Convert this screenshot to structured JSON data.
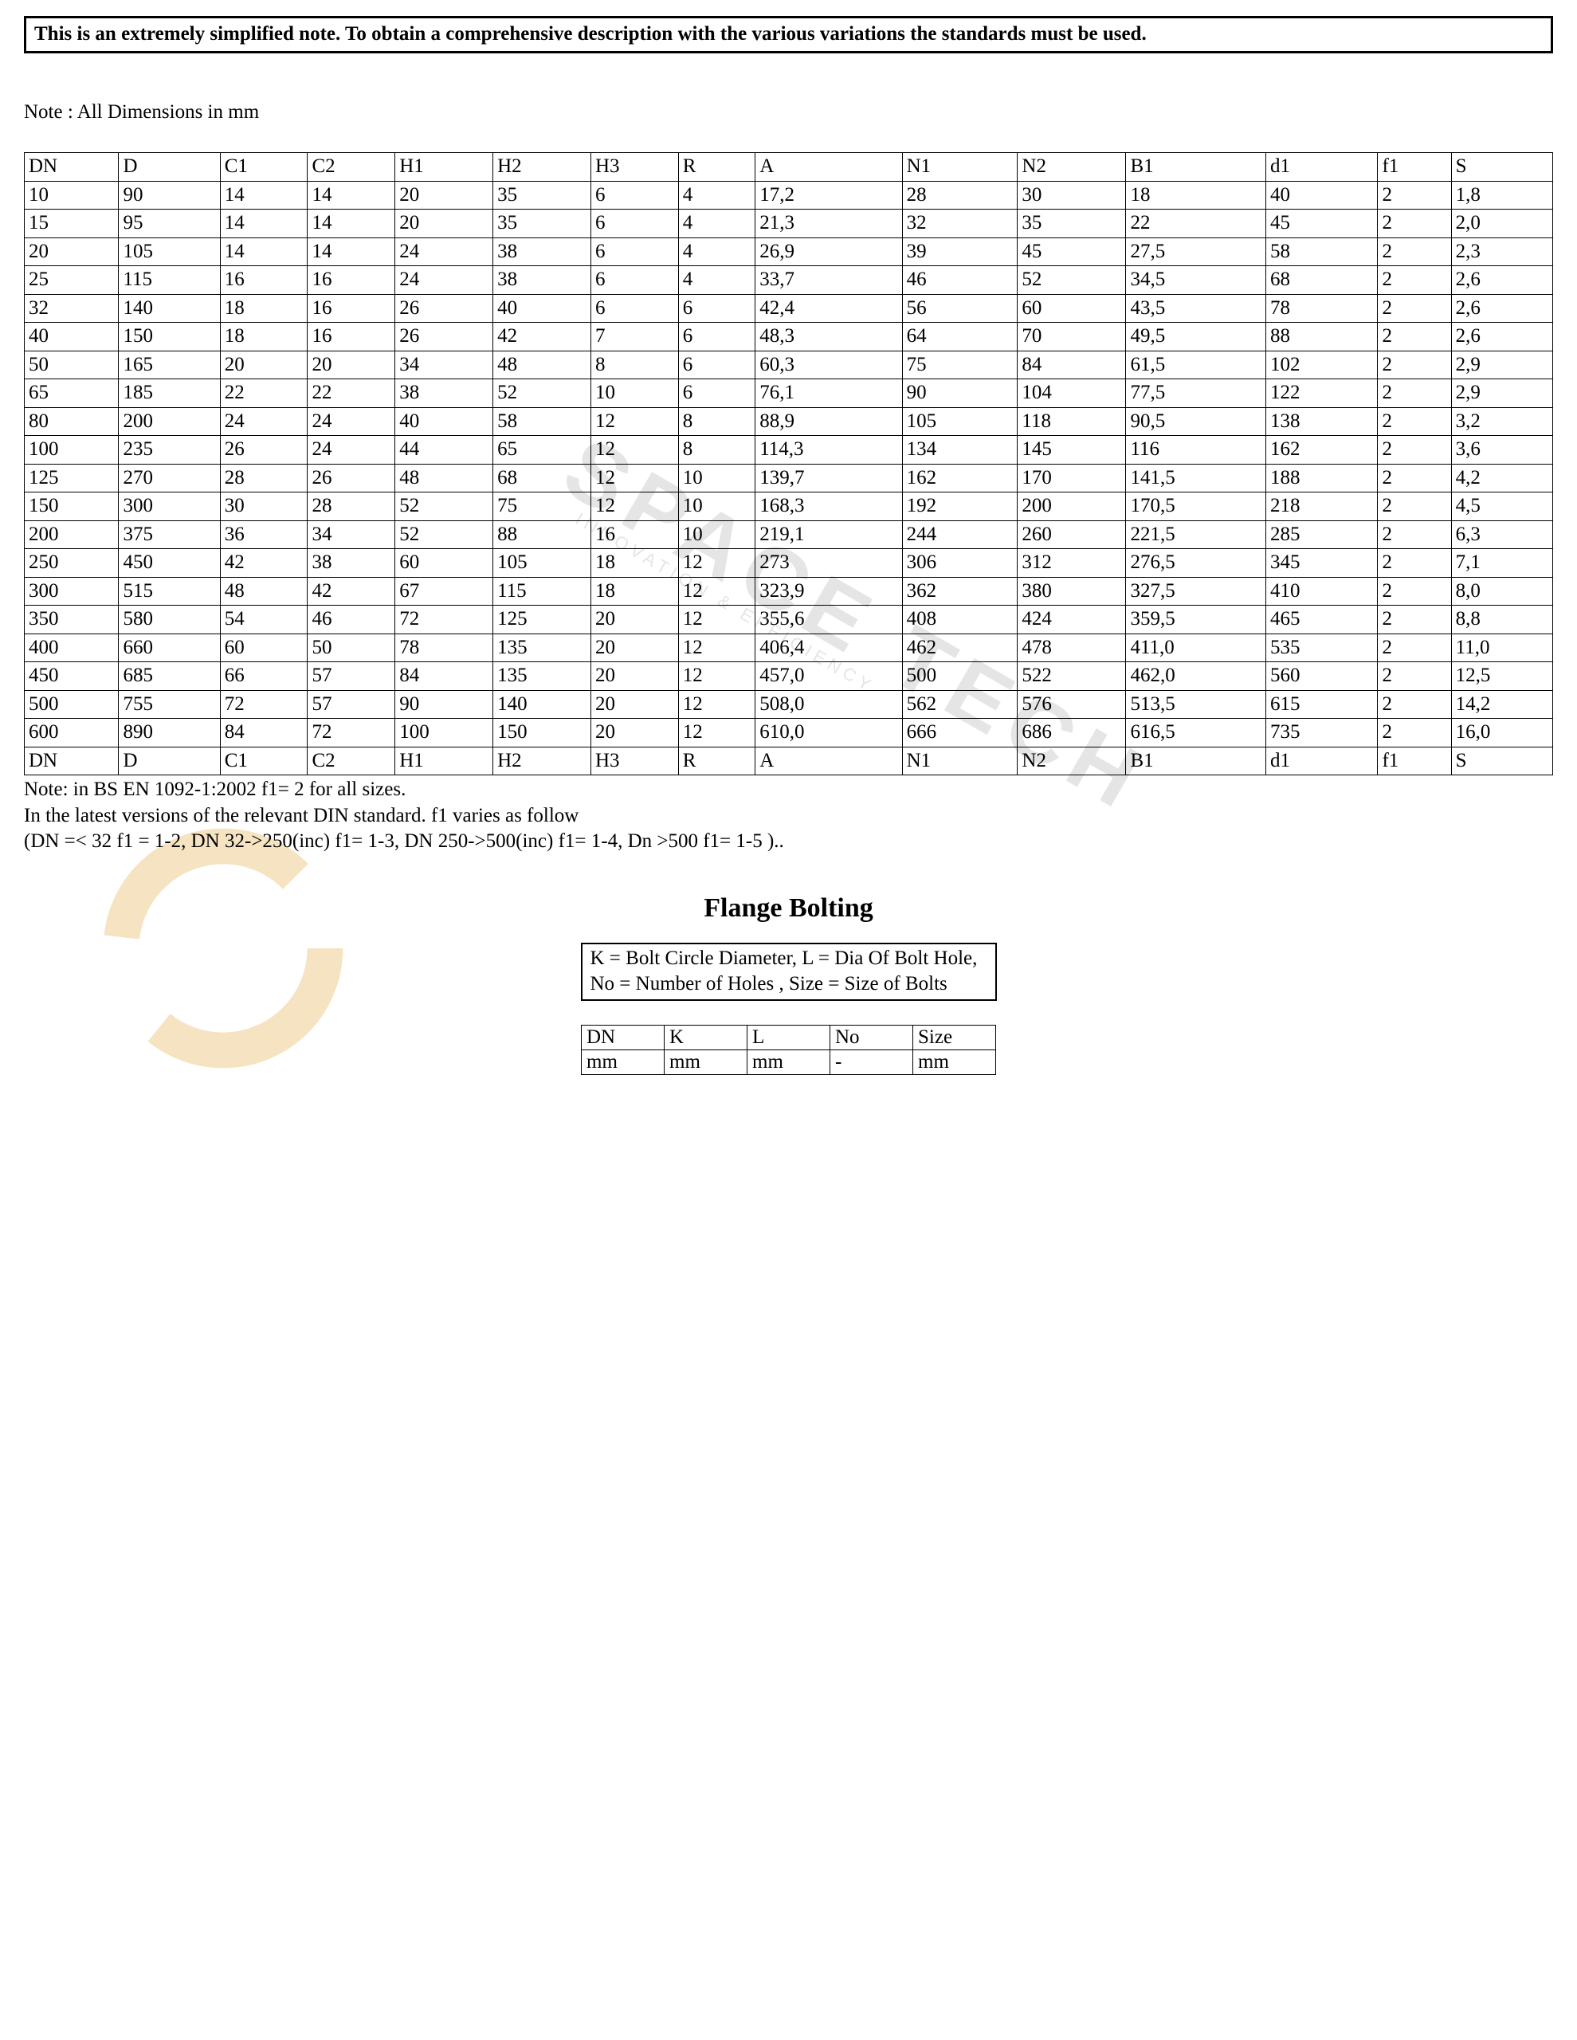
{
  "warning_text": "This is an extremely simplified note.   To obtain a comprehensive description with the various variations the standards must be used.",
  "dims_note": "Note : All Dimensions in mm",
  "main_table": {
    "columns": [
      "DN",
      "D",
      "C1",
      "C2",
      "H1",
      "H2",
      "H3",
      "R",
      "A",
      "N1",
      "N2",
      "B1",
      "d1",
      "f1",
      "S"
    ],
    "col_widths_pct": [
      5.4,
      5.8,
      5.0,
      5.0,
      5.6,
      5.6,
      5.0,
      4.4,
      8.4,
      6.6,
      6.2,
      8.0,
      6.4,
      4.2,
      5.8
    ],
    "rows": [
      [
        "10",
        "90",
        "14",
        "14",
        "20",
        "35",
        "6",
        "4",
        "17,2",
        "28",
        "30",
        "18",
        "40",
        "2",
        "1,8"
      ],
      [
        "15",
        "95",
        "14",
        "14",
        "20",
        "35",
        "6",
        "4",
        "21,3",
        "32",
        "35",
        "22",
        "45",
        "2",
        "2,0"
      ],
      [
        "20",
        "105",
        "14",
        "14",
        "24",
        "38",
        "6",
        "4",
        "26,9",
        "39",
        "45",
        "27,5",
        "58",
        "2",
        "2,3"
      ],
      [
        "25",
        "115",
        "16",
        "16",
        "24",
        "38",
        "6",
        "4",
        "33,7",
        "46",
        "52",
        "34,5",
        "68",
        "2",
        "2,6"
      ],
      [
        "32",
        "140",
        "18",
        "16",
        "26",
        "40",
        "6",
        "6",
        "42,4",
        "56",
        "60",
        "43,5",
        "78",
        "2",
        "2,6"
      ],
      [
        "40",
        "150",
        "18",
        "16",
        "26",
        "42",
        "7",
        "6",
        "48,3",
        "64",
        "70",
        "49,5",
        "88",
        "2",
        "2,6"
      ],
      [
        "50",
        "165",
        "20",
        "20",
        "34",
        "48",
        "8",
        "6",
        "60,3",
        "75",
        "84",
        "61,5",
        "102",
        "2",
        "2,9"
      ],
      [
        "65",
        "185",
        "22",
        "22",
        "38",
        "52",
        "10",
        "6",
        "76,1",
        "90",
        "104",
        "77,5",
        "122",
        "2",
        "2,9"
      ],
      [
        "80",
        "200",
        "24",
        "24",
        "40",
        "58",
        "12",
        "8",
        "88,9",
        "105",
        "118",
        "90,5",
        "138",
        "2",
        "3,2"
      ],
      [
        "100",
        "235",
        "26",
        "24",
        "44",
        "65",
        "12",
        "8",
        "114,3",
        "134",
        "145",
        "116",
        "162",
        "2",
        "3,6"
      ],
      [
        "125",
        "270",
        "28",
        "26",
        "48",
        "68",
        "12",
        "10",
        "139,7",
        "162",
        "170",
        "141,5",
        "188",
        "2",
        "4,2"
      ],
      [
        "150",
        "300",
        "30",
        "28",
        "52",
        "75",
        "12",
        "10",
        "168,3",
        "192",
        "200",
        "170,5",
        "218",
        "2",
        "4,5"
      ],
      [
        "200",
        "375",
        "36",
        "34",
        "52",
        "88",
        "16",
        "10",
        "219,1",
        "244",
        "260",
        "221,5",
        "285",
        "2",
        "6,3"
      ],
      [
        "250",
        "450",
        "42",
        "38",
        "60",
        "105",
        "18",
        "12",
        "273",
        "306",
        "312",
        "276,5",
        "345",
        "2",
        "7,1"
      ],
      [
        "300",
        "515",
        "48",
        "42",
        "67",
        "115",
        "18",
        "12",
        "323,9",
        "362",
        "380",
        "327,5",
        "410",
        "2",
        "8,0"
      ],
      [
        "350",
        "580",
        "54",
        "46",
        "72",
        "125",
        "20",
        "12",
        "355,6",
        "408",
        "424",
        "359,5",
        "465",
        "2",
        "8,8"
      ],
      [
        "400",
        "660",
        "60",
        "50",
        "78",
        "135",
        "20",
        "12",
        "406,4",
        "462",
        "478",
        "411,0",
        "535",
        "2",
        "11,0"
      ],
      [
        "450",
        "685",
        "66",
        "57",
        "84",
        "135",
        "20",
        "12",
        "457,0",
        "500",
        "522",
        "462,0",
        "560",
        "2",
        "12,5"
      ],
      [
        "500",
        "755",
        "72",
        "57",
        "90",
        "140",
        "20",
        "12",
        "508,0",
        "562",
        "576",
        "513,5",
        "615",
        "2",
        "14,2"
      ],
      [
        "600",
        "890",
        "84",
        "72",
        "100",
        "150",
        "20",
        "12",
        "610,0",
        "666",
        "686",
        "616,5",
        "735",
        "2",
        "16,0"
      ]
    ],
    "footer": [
      "DN",
      "D",
      "C1",
      "C2",
      "H1",
      "H2",
      "H3",
      "R",
      "A",
      "N1",
      "N2",
      "B1",
      "d1",
      "f1",
      "S"
    ]
  },
  "after_notes": [
    "Note: in BS EN 1092-1:2002   f1= 2 for all sizes.",
    "In the latest versions of the relevant DIN standard. f1 varies as follow",
    "(DN =< 32 f1 = 1-2, DN 32->250(inc) f1= 1-3, DN 250->500(inc) f1= 1-4, Dn >500 f1= 1-5 ).."
  ],
  "section_title": "Flange Bolting",
  "legend_text_l1": "K = Bolt Circle Diameter, L = Dia Of Bolt Hole,",
  "legend_text_l2": "No = Number of Holes , Size = Size of Bolts",
  "bolting_table": {
    "header": [
      "DN",
      "K",
      "L",
      "No",
      "Size"
    ],
    "units": [
      "mm",
      "mm",
      "mm",
      "-",
      "mm"
    ]
  },
  "watermark": {
    "big": "SPACE TECH",
    "small": "INNOVATION & EFFICIENCY"
  },
  "colors": {
    "text": "#000000",
    "bg": "#ffffff",
    "wm": "#b0b0b0",
    "ring": "#e2a63a"
  }
}
